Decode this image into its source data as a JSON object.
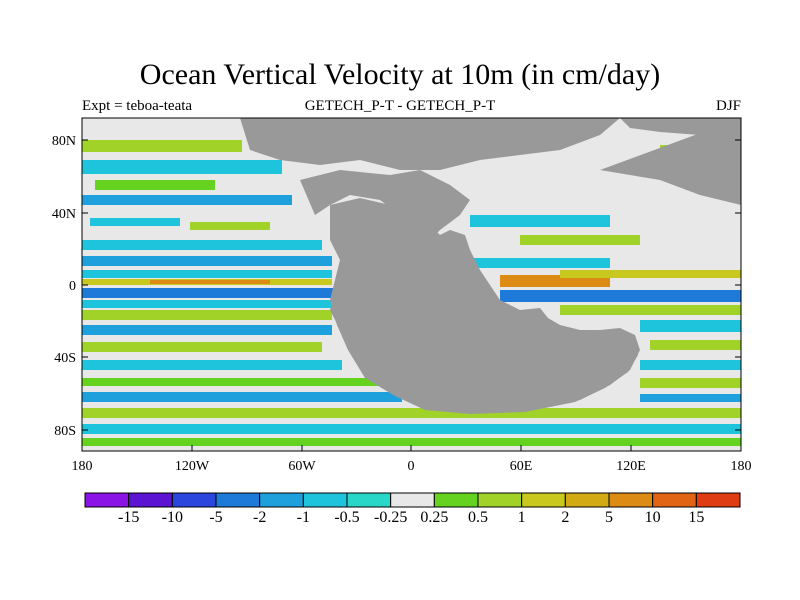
{
  "title": "Ocean Vertical Velocity at 10m (in cm/day)",
  "subtitle_left": "Expt = teboa-teata",
  "subtitle_center": "GETECH_P-T - GETECH_P-T",
  "subtitle_right": "DJF",
  "lat_ticks": [
    "80N",
    "40N",
    "0",
    "40S",
    "80S"
  ],
  "lon_ticks": [
    "180",
    "120W",
    "60W",
    "0",
    "60E",
    "120E",
    "180"
  ],
  "colorbar": {
    "labels": [
      "-15",
      "-10",
      "-5",
      "-2",
      "-1",
      "-0.5",
      "-0.25",
      "0.25",
      "0.5",
      "1",
      "2",
      "5",
      "10",
      "15"
    ],
    "colors": [
      "#8a14e6",
      "#5a14d2",
      "#2a46dc",
      "#1e7ad8",
      "#1ea0dc",
      "#1ec3dc",
      "#28d7c8",
      "#e8e8e8",
      "#64d21e",
      "#a0d228",
      "#c8c81e",
      "#d2aa14",
      "#dc8c14",
      "#e06414",
      "#e03c14"
    ]
  },
  "map_colors": {
    "land": "#999999",
    "neutral": "#e8e8e8",
    "cyan": "#1ec3dc",
    "light_blue": "#1ea0dc",
    "blue": "#1e7ad8",
    "teal": "#28d7c8",
    "green": "#64d21e",
    "yellow_green": "#a0d228",
    "yellow": "#c8c81e",
    "orange": "#dc8c14"
  }
}
